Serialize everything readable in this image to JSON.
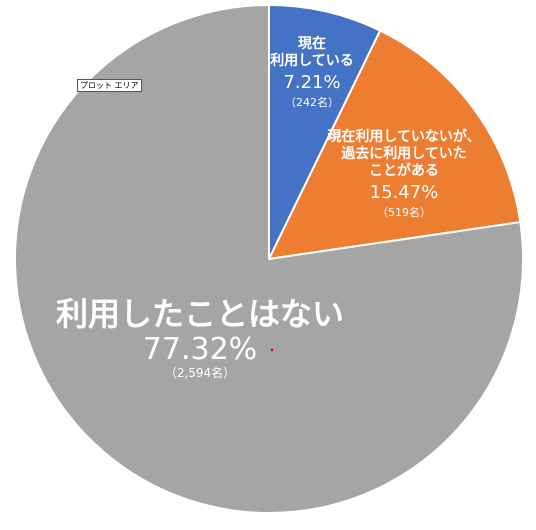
{
  "chart_data": {
    "type": "pie",
    "start_angle_deg": 0,
    "direction": "clockwise",
    "slices": [
      {
        "lines": [
          "現在",
          "利用している"
        ],
        "percent": "7.21%",
        "count": "（242名）",
        "value": 7.21,
        "color": "#4472c4",
        "label_color": "#ffffff"
      },
      {
        "lines": [
          "現在利用していないが、",
          "過去に利用していた",
          "ことがある"
        ],
        "percent": "15.47%",
        "count": "（519名）",
        "value": 15.47,
        "color": "#ed7d31",
        "label_color": "#ffffff"
      },
      {
        "lines": [
          "利用したことはない"
        ],
        "percent": "77.32%",
        "count": "（2,594名）",
        "value": 77.32,
        "color": "#a5a5a5",
        "label_color": "#ffffff"
      }
    ]
  },
  "tooltip": {
    "text": "プロット エリア"
  }
}
